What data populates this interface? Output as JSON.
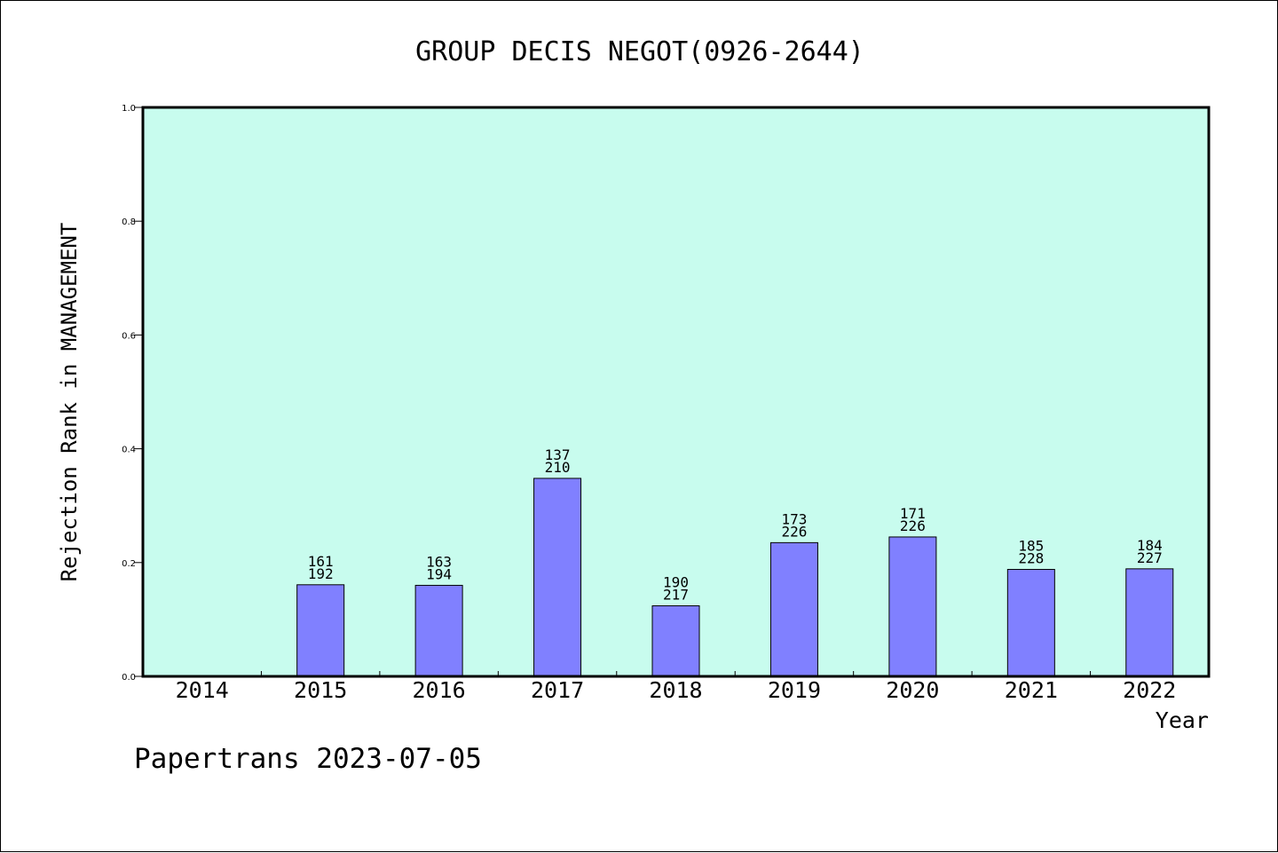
{
  "chart_data": {
    "type": "bar",
    "title": "GROUP DECIS NEGOT(0926-2644)",
    "xlabel": "Year",
    "ylabel": "Rejection Rank in MANAGEMENT",
    "categories": [
      "2014",
      "2015",
      "2016",
      "2017",
      "2018",
      "2019",
      "2020",
      "2021",
      "2022"
    ],
    "values": [
      null,
      0.161,
      0.16,
      0.348,
      0.124,
      0.235,
      0.245,
      0.188,
      0.189
    ],
    "labels_top": [
      "",
      "161",
      "163",
      "137",
      "190",
      "173",
      "171",
      "185",
      "184"
    ],
    "labels_bottom": [
      "",
      "192",
      "194",
      "210",
      "217",
      "226",
      "226",
      "228",
      "227"
    ],
    "ylim": [
      0,
      1.0
    ],
    "yticks": [
      "0.0",
      "0.2",
      "0.4",
      "0.6",
      "0.8",
      "1.0"
    ],
    "grid": false,
    "colors": {
      "plot_bg": "#c8fcee",
      "bar_fill": "#8080ff",
      "bar_stroke": "#000000"
    }
  },
  "footer": "Papertrans 2023-07-05"
}
